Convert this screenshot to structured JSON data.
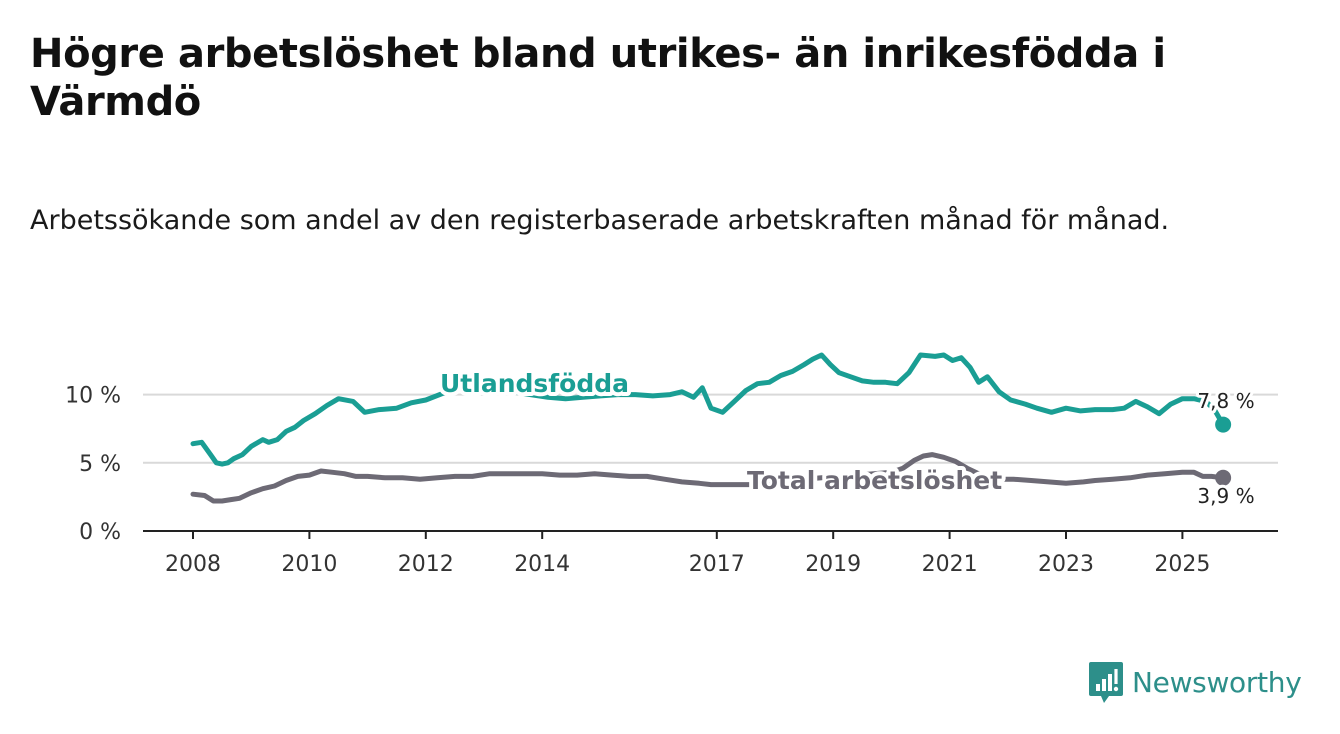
{
  "title": "Högre arbetslöshet bland utrikes- än inrikesfödda i Värmdö",
  "subtitle": "Arbetssökande som andel av den registerbaserade arbetskraften månad för månad.",
  "brand": {
    "name": "Newsworthy",
    "color": "#2d8f8a",
    "icon": "newsworthy-logo-icon"
  },
  "chart_data": {
    "type": "line",
    "title": "Högre arbetslöshet bland utrikes- än inrikesfödda i Värmdö",
    "subtitle": "Arbetssökande som andel av den registerbaserade arbetskraften månad för månad.",
    "xlabel": "",
    "ylabel": "",
    "x_range": [
      2008,
      2026.8
    ],
    "ylim": [
      0,
      14
    ],
    "yticks": [
      0,
      5,
      10
    ],
    "ytick_labels": [
      "0 %",
      "5 %",
      "10 %"
    ],
    "xticks": [
      2008,
      2010,
      2012,
      2014,
      2017,
      2019,
      2021,
      2023,
      2025
    ],
    "xtick_labels": [
      "2008",
      "2010",
      "2012",
      "2014",
      "2017",
      "2019",
      "2021",
      "2023",
      "2025"
    ],
    "grid": true,
    "series": [
      {
        "name": "Utlandsfödda",
        "label": "Utlandsfödda",
        "color": "#1a9e94",
        "end_label": "7,8 %",
        "x": [
          2008.0,
          2008.15,
          2008.3,
          2008.4,
          2008.5,
          2008.6,
          2008.7,
          2008.85,
          2009.0,
          2009.2,
          2009.3,
          2009.45,
          2009.6,
          2009.75,
          2009.9,
          2010.1,
          2010.3,
          2010.5,
          2010.75,
          2010.95,
          2011.2,
          2011.5,
          2011.75,
          2012.0,
          2012.3,
          2012.6,
          2012.9,
          2013.2,
          2013.5,
          2013.8,
          2014.1,
          2014.4,
          2014.7,
          2015.0,
          2015.3,
          2015.6,
          2015.9,
          2016.2,
          2016.4,
          2016.6,
          2016.75,
          2016.9,
          2017.1,
          2017.3,
          2017.5,
          2017.7,
          2017.9,
          2018.1,
          2018.3,
          2018.5,
          2018.65,
          2018.8,
          2018.95,
          2019.1,
          2019.3,
          2019.5,
          2019.7,
          2019.9,
          2020.1,
          2020.3,
          2020.5,
          2020.75,
          2020.9,
          2021.05,
          2021.2,
          2021.35,
          2021.5,
          2021.65,
          2021.85,
          2022.05,
          2022.3,
          2022.5,
          2022.75,
          2023.0,
          2023.25,
          2023.5,
          2023.8,
          2024.0,
          2024.2,
          2024.4,
          2024.6,
          2024.8,
          2025.0,
          2025.2,
          2025.4,
          2025.55,
          2025.7
        ],
        "values": [
          6.4,
          6.5,
          5.6,
          5.0,
          4.9,
          5.0,
          5.3,
          5.6,
          6.2,
          6.7,
          6.5,
          6.7,
          7.3,
          7.6,
          8.1,
          8.6,
          9.2,
          9.7,
          9.5,
          8.7,
          8.9,
          9.0,
          9.4,
          9.6,
          10.1,
          10.4,
          10.5,
          10.4,
          10.2,
          10.0,
          9.8,
          9.7,
          9.8,
          9.9,
          10.0,
          10.0,
          9.9,
          10.0,
          10.2,
          9.8,
          10.5,
          9.0,
          8.7,
          9.5,
          10.3,
          10.8,
          10.9,
          11.4,
          11.7,
          12.2,
          12.6,
          12.9,
          12.2,
          11.6,
          11.3,
          11.0,
          10.9,
          10.9,
          10.8,
          11.6,
          12.9,
          12.8,
          12.9,
          12.5,
          12.7,
          12.0,
          10.9,
          11.3,
          10.2,
          9.6,
          9.3,
          9.0,
          8.7,
          9.0,
          8.8,
          8.9,
          8.9,
          9.0,
          9.5,
          9.1,
          8.6,
          9.3,
          9.7,
          9.7,
          9.5,
          8.9,
          7.8
        ]
      },
      {
        "name": "Total arbetslöshet",
        "label": "Total arbetslöshet",
        "color": "#6d6a75",
        "end_label": "3,9 %",
        "x": [
          2008.0,
          2008.2,
          2008.35,
          2008.5,
          2008.65,
          2008.8,
          2009.0,
          2009.2,
          2009.4,
          2009.6,
          2009.8,
          2010.0,
          2010.2,
          2010.4,
          2010.6,
          2010.8,
          2011.0,
          2011.3,
          2011.6,
          2011.9,
          2012.2,
          2012.5,
          2012.8,
          2013.1,
          2013.4,
          2013.7,
          2014.0,
          2014.3,
          2014.6,
          2014.9,
          2015.2,
          2015.5,
          2015.8,
          2016.1,
          2016.4,
          2016.7,
          2016.9,
          2017.1,
          2017.3,
          2017.6,
          2017.9,
          2018.2,
          2018.5,
          2018.8,
          2019.1,
          2019.4,
          2019.7,
          2020.0,
          2020.2,
          2020.4,
          2020.55,
          2020.7,
          2020.9,
          2021.1,
          2021.3,
          2021.5,
          2021.7,
          2021.9,
          2022.1,
          2022.4,
          2022.7,
          2023.0,
          2023.3,
          2023.5,
          2023.8,
          2024.1,
          2024.4,
          2024.7,
          2025.0,
          2025.2,
          2025.35,
          2025.5,
          2025.7
        ],
        "values": [
          2.7,
          2.6,
          2.2,
          2.2,
          2.3,
          2.4,
          2.8,
          3.1,
          3.3,
          3.7,
          4.0,
          4.1,
          4.4,
          4.3,
          4.2,
          4.0,
          4.0,
          3.9,
          3.9,
          3.8,
          3.9,
          4.0,
          4.0,
          4.2,
          4.2,
          4.2,
          4.2,
          4.1,
          4.1,
          4.2,
          4.1,
          4.0,
          4.0,
          3.8,
          3.6,
          3.5,
          3.4,
          3.4,
          3.4,
          3.4,
          3.6,
          3.7,
          3.8,
          3.9,
          4.0,
          4.1,
          4.2,
          4.3,
          4.6,
          5.2,
          5.5,
          5.6,
          5.4,
          5.1,
          4.6,
          4.2,
          4.0,
          3.8,
          3.8,
          3.7,
          3.6,
          3.5,
          3.6,
          3.7,
          3.8,
          3.9,
          4.1,
          4.2,
          4.3,
          4.3,
          4.0,
          4.0,
          3.9
        ]
      }
    ]
  }
}
